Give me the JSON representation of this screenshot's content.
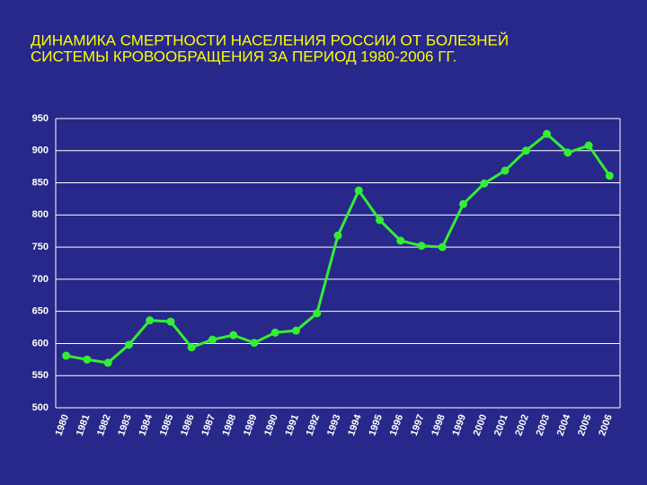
{
  "chart_data": {
    "type": "line",
    "title": [
      "ДИНАМИКА СМЕРТНОСТИ НАСЕЛЕНИЯ РОССИИ ОТ БОЛЕЗНЕЙ",
      "СИСТЕМЫ КРОВООБРАЩЕНИЯ ЗА ПЕРИОД 1980-2006 ГГ."
    ],
    "categories": [
      "1980",
      "1981",
      "1982",
      "1983",
      "1984",
      "1985",
      "1986",
      "1987",
      "1988",
      "1989",
      "1990",
      "1991",
      "1992",
      "1993",
      "1994",
      "1995",
      "1996",
      "1997",
      "1998",
      "1999",
      "2000",
      "2001",
      "2002",
      "2003",
      "2004",
      "2005",
      "2006"
    ],
    "values": [
      581,
      575,
      570,
      598,
      636,
      634,
      594,
      606,
      613,
      601,
      617,
      620,
      647,
      768,
      838,
      792,
      760,
      752,
      750,
      817,
      849,
      869,
      900,
      926,
      897,
      908,
      861
    ],
    "color": "#33ee33",
    "ylim": [
      500,
      950
    ],
    "yticks": [
      500,
      550,
      600,
      650,
      700,
      750,
      800,
      850,
      900,
      950
    ],
    "grid": true
  }
}
